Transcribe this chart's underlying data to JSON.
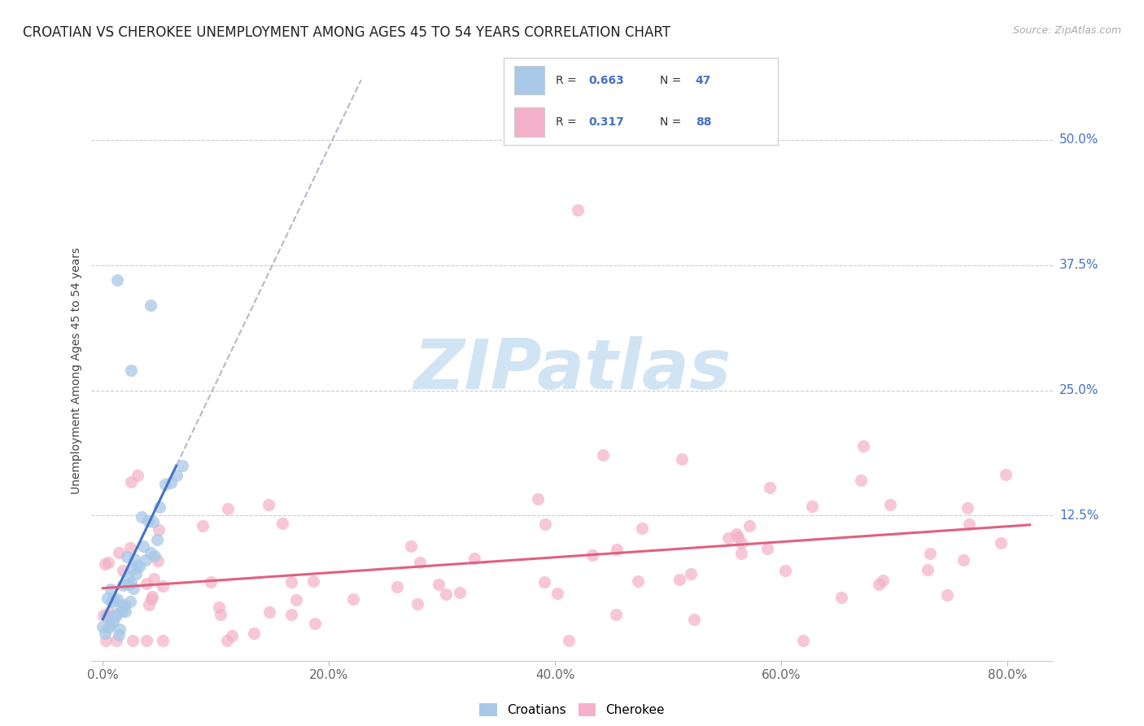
{
  "title": "CROATIAN VS CHEROKEE UNEMPLOYMENT AMONG AGES 45 TO 54 YEARS CORRELATION CHART",
  "source": "Source: ZipAtlas.com",
  "ylabel": "Unemployment Among Ages 45 to 54 years",
  "x_ticks": [
    0.0,
    0.2,
    0.4,
    0.6,
    0.8
  ],
  "x_tick_labels": [
    "0.0%",
    "20.0%",
    "40.0%",
    "60.0%",
    "80.0%"
  ],
  "y_ticks_right": [
    0.125,
    0.25,
    0.375,
    0.5
  ],
  "y_tick_labels_right": [
    "12.5%",
    "25.0%",
    "37.5%",
    "50.0%"
  ],
  "xlim": [
    -0.01,
    0.84
  ],
  "ylim": [
    -0.02,
    0.56
  ],
  "croatian_R": "0.663",
  "croatian_N": "47",
  "cherokee_R": "0.317",
  "cherokee_N": "88",
  "croatian_scatter_color": "#a8c8e8",
  "croatian_line_color": "#4472c4",
  "cherokee_scatter_color": "#f4b0c8",
  "cherokee_line_color": "#e06080",
  "legend_value_color": "#4472c4",
  "grid_color": "#cccccc",
  "background": "#ffffff",
  "watermark_color": "#d0e4f4",
  "title_fontsize": 12,
  "source_fontsize": 9,
  "tick_fontsize": 11,
  "ylabel_fontsize": 10
}
